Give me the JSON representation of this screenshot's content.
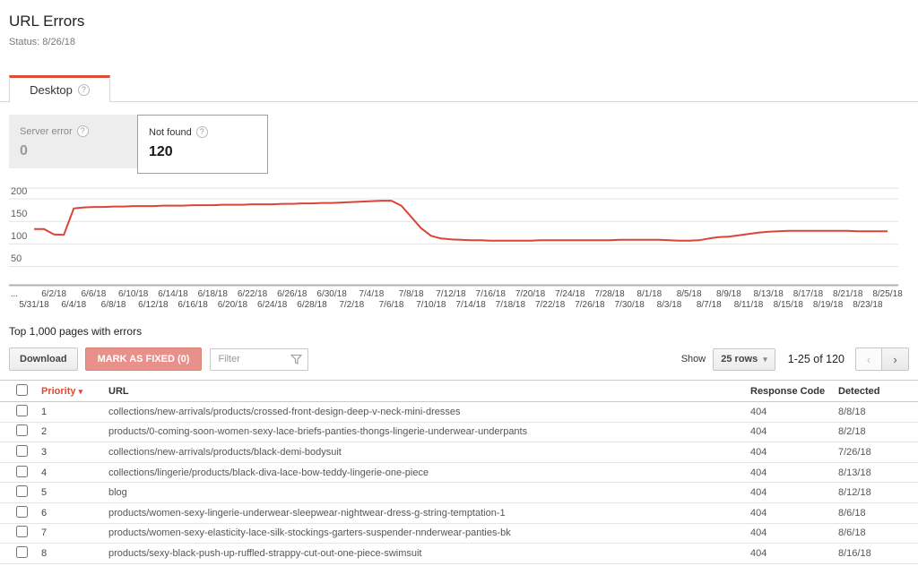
{
  "header": {
    "title": "URL Errors",
    "status": "Status: 8/26/18"
  },
  "tab": {
    "label": "Desktop",
    "help_icon": "?"
  },
  "error_cards": [
    {
      "label": "Server error",
      "value": "0",
      "selected": false
    },
    {
      "label": "Not found",
      "value": "120",
      "selected": true
    }
  ],
  "chart_data": {
    "type": "line",
    "title": "Not found errors over time",
    "xlabel": "",
    "ylabel": "",
    "ylim": [
      0,
      228
    ],
    "yticks": [
      50,
      100,
      150,
      200
    ],
    "grid": true,
    "legend_position": "none",
    "line_color": "#db4437",
    "x_interval": "daily",
    "x": [
      "5/31/18",
      "6/1/18",
      "6/2/18",
      "6/3/18",
      "6/4/18",
      "6/5/18",
      "6/6/18",
      "6/7/18",
      "6/8/18",
      "6/9/18",
      "6/10/18",
      "6/11/18",
      "6/12/18",
      "6/13/18",
      "6/14/18",
      "6/15/18",
      "6/16/18",
      "6/17/18",
      "6/18/18",
      "6/19/18",
      "6/20/18",
      "6/21/18",
      "6/22/18",
      "6/23/18",
      "6/24/18",
      "6/25/18",
      "6/26/18",
      "6/27/18",
      "6/28/18",
      "6/29/18",
      "6/30/18",
      "7/1/18",
      "7/2/18",
      "7/3/18",
      "7/4/18",
      "7/5/18",
      "7/6/18",
      "7/7/18",
      "7/8/18",
      "7/9/18",
      "7/10/18",
      "7/11/18",
      "7/12/18",
      "7/13/18",
      "7/14/18",
      "7/15/18",
      "7/16/18",
      "7/17/18",
      "7/18/18",
      "7/19/18",
      "7/20/18",
      "7/21/18",
      "7/22/18",
      "7/23/18",
      "7/24/18",
      "7/25/18",
      "7/26/18",
      "7/27/18",
      "7/28/18",
      "7/29/18",
      "7/30/18",
      "7/31/18",
      "8/1/18",
      "8/2/18",
      "8/3/18",
      "8/4/18",
      "8/5/18",
      "8/6/18",
      "8/7/18",
      "8/8/18",
      "8/9/18",
      "8/10/18",
      "8/11/18",
      "8/12/18",
      "8/13/18",
      "8/14/18",
      "8/15/18",
      "8/16/18",
      "8/17/18",
      "8/18/18",
      "8/19/18",
      "8/20/18",
      "8/21/18",
      "8/22/18",
      "8/23/18",
      "8/24/18",
      "8/25/18"
    ],
    "series": [
      {
        "name": "Not found",
        "values": [
          133,
          133,
          121,
          120,
          179,
          181,
          182,
          182,
          183,
          183,
          184,
          184,
          184,
          185,
          185,
          185,
          186,
          186,
          186,
          187,
          187,
          187,
          188,
          188,
          188,
          189,
          189,
          190,
          190,
          191,
          191,
          192,
          193,
          194,
          195,
          196,
          196,
          185,
          160,
          135,
          118,
          112,
          110,
          109,
          108,
          108,
          107,
          107,
          107,
          107,
          107,
          108,
          108,
          108,
          108,
          108,
          108,
          108,
          108,
          109,
          109,
          109,
          109,
          109,
          108,
          107,
          107,
          108,
          112,
          115,
          116,
          119,
          122,
          125,
          127,
          128,
          129,
          129,
          129,
          129,
          129,
          129,
          129,
          128,
          128,
          128,
          128
        ]
      }
    ],
    "x_tick_labels_top": [
      "...",
      "6/2/18",
      "6/6/18",
      "6/10/18",
      "6/14/18",
      "6/18/18",
      "6/22/18",
      "6/26/18",
      "6/30/18",
      "7/4/18",
      "7/8/18",
      "7/12/18",
      "7/16/18",
      "7/20/18",
      "7/24/18",
      "7/28/18",
      "8/1/18",
      "8/5/18",
      "8/9/18",
      "8/13/18",
      "8/17/18",
      "8/21/18",
      "8/25/18"
    ],
    "x_tick_labels_bottom": [
      "5/31/18",
      "6/4/18",
      "6/8/18",
      "6/12/18",
      "6/16/18",
      "6/20/18",
      "6/24/18",
      "6/28/18",
      "7/2/18",
      "7/6/18",
      "7/10/18",
      "7/14/18",
      "7/18/18",
      "7/22/18",
      "7/26/18",
      "7/30/18",
      "8/3/18",
      "8/7/18",
      "8/11/18",
      "8/15/18",
      "8/19/18",
      "8/23/18"
    ]
  },
  "table_section": {
    "heading": "Top 1,000 pages with errors",
    "toolbar": {
      "download_label": "Download",
      "mark_fixed_label": "MARK AS FIXED (0)",
      "filter_placeholder": "Filter"
    },
    "pagination": {
      "show_label": "Show",
      "rows_per_page": "25 rows",
      "range": "1-25 of 120"
    },
    "columns": {
      "priority": "Priority",
      "url": "URL",
      "response_code": "Response Code",
      "detected": "Detected"
    },
    "rows": [
      {
        "priority": "1",
        "url": "collections/new-arrivals/products/crossed-front-design-deep-v-neck-mini-dresses",
        "code": "404",
        "detected": "8/8/18"
      },
      {
        "priority": "2",
        "url": "products/0-coming-soon-women-sexy-lace-briefs-panties-thongs-lingerie-underwear-underpants",
        "code": "404",
        "detected": "8/2/18"
      },
      {
        "priority": "3",
        "url": "collections/new-arrivals/products/black-demi-bodysuit",
        "code": "404",
        "detected": "7/26/18"
      },
      {
        "priority": "4",
        "url": "collections/lingerie/products/black-diva-lace-bow-teddy-lingerie-one-piece",
        "code": "404",
        "detected": "8/13/18"
      },
      {
        "priority": "5",
        "url": "blog",
        "code": "404",
        "detected": "8/12/18"
      },
      {
        "priority": "6",
        "url": "products/women-sexy-lingerie-underwear-sleepwear-nightwear-dress-g-string-temptation-1",
        "code": "404",
        "detected": "8/6/18"
      },
      {
        "priority": "7",
        "url": "products/women-sexy-elasticity-lace-silk-stockings-garters-suspender-nnderwear-panties-bk",
        "code": "404",
        "detected": "8/6/18"
      },
      {
        "priority": "8",
        "url": "products/sexy-black-push-up-ruffled-strappy-cut-out-one-piece-swimsuit",
        "code": "404",
        "detected": "8/16/18"
      }
    ]
  },
  "icons": {
    "help": "?",
    "sort_desc": "▾",
    "dropdown_caret": "▾",
    "prev_chevron": "‹",
    "next_chevron": "›"
  },
  "colors": {
    "accent_red": "#dd4b39",
    "chart_line_red": "#db4437",
    "salmon_button": "#e8918a",
    "card_inactive_bg": "#ededed",
    "grid_line": "#e4e4e4",
    "axis_line": "#b0b0b0"
  }
}
